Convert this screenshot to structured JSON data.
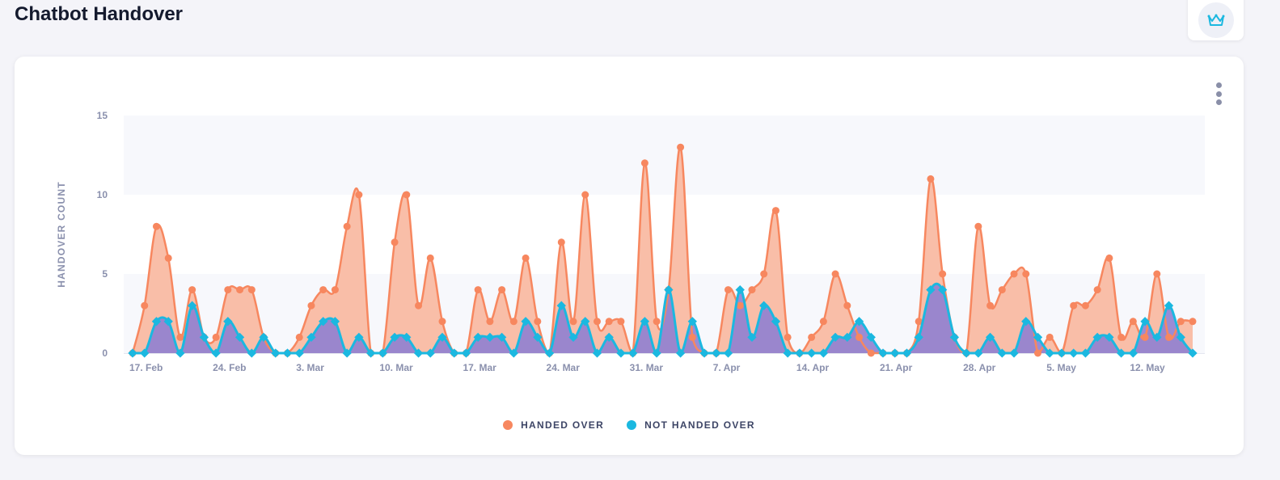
{
  "header": {
    "title": "Chatbot Handover",
    "premium_icon": "crown-icon"
  },
  "chart_data": {
    "type": "area",
    "title": "Chatbot Handover",
    "xlabel": "",
    "ylabel": "HANDOVER COUNT",
    "ylim": [
      0,
      15
    ],
    "yticks": [
      "0",
      "5",
      "10",
      "15"
    ],
    "start_date": "17. Feb",
    "end_date": "16. May",
    "xtick_labels": [
      "17. Feb",
      "24. Feb",
      "3. Mar",
      "10. Mar",
      "17. Mar",
      "24. Mar",
      "31. Mar",
      "7. Apr",
      "14. Apr",
      "21. Apr",
      "28. Apr",
      "5. May",
      "12. May"
    ],
    "xtick_every_days": 7,
    "legend_position": "bottom-center",
    "series": [
      {
        "name": "HANDED OVER",
        "color": "#f7875f",
        "fill": "#f9bea8",
        "values": [
          0,
          3,
          8,
          6,
          1,
          4,
          1,
          1,
          4,
          4,
          4,
          1,
          0,
          0,
          1,
          3,
          4,
          4,
          8,
          10,
          0,
          0,
          7,
          10,
          3,
          6,
          2,
          0,
          0,
          4,
          2,
          4,
          2,
          6,
          2,
          0,
          7,
          2,
          10,
          2,
          2,
          2,
          0,
          12,
          2,
          4,
          13,
          1,
          0,
          0,
          4,
          3,
          4,
          5,
          9,
          1,
          0,
          1,
          2,
          5,
          3,
          1,
          0,
          0,
          0,
          0,
          2,
          11,
          5,
          1,
          0,
          8,
          3,
          4,
          5,
          5,
          0,
          1,
          0,
          3,
          3,
          4,
          6,
          1,
          2,
          1,
          5,
          1,
          2,
          2
        ]
      },
      {
        "name": "NOT HANDED OVER",
        "color": "#1bb8e0",
        "fill": "#8f7fd0",
        "values": [
          0,
          0,
          2,
          2,
          0,
          3,
          1,
          0,
          2,
          1,
          0,
          1,
          0,
          0,
          0,
          1,
          2,
          2,
          0,
          1,
          0,
          0,
          1,
          1,
          0,
          0,
          1,
          0,
          0,
          1,
          1,
          1,
          0,
          2,
          1,
          0,
          3,
          1,
          2,
          0,
          1,
          0,
          0,
          2,
          0,
          4,
          0,
          2,
          0,
          0,
          0,
          4,
          1,
          3,
          2,
          0,
          0,
          0,
          0,
          1,
          1,
          2,
          1,
          0,
          0,
          0,
          1,
          4,
          4,
          1,
          0,
          0,
          1,
          0,
          0,
          2,
          1,
          0,
          0,
          0,
          0,
          1,
          1,
          0,
          0,
          2,
          1,
          3,
          1,
          0
        ]
      }
    ]
  },
  "menu": {
    "icon": "kebab-menu-icon"
  }
}
